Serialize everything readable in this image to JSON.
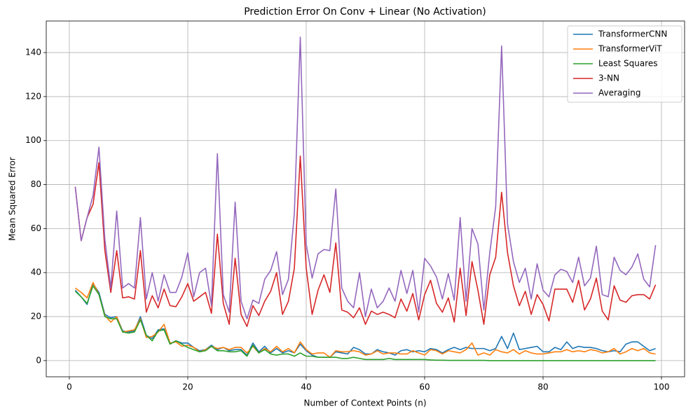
{
  "chart_data": {
    "type": "line",
    "title": "Prediction Error On Conv + Linear (No Activation)",
    "x_label": "Number of Context Points (n)",
    "y_label": "Mean Squared Error",
    "x": [
      1,
      2,
      3,
      4,
      5,
      6,
      7,
      8,
      9,
      10,
      11,
      12,
      13,
      14,
      15,
      16,
      17,
      18,
      19,
      20,
      21,
      22,
      23,
      24,
      25,
      26,
      27,
      28,
      29,
      30,
      31,
      32,
      33,
      34,
      35,
      36,
      37,
      38,
      39,
      40,
      41,
      42,
      43,
      44,
      45,
      46,
      47,
      48,
      49,
      50,
      51,
      52,
      53,
      54,
      55,
      56,
      57,
      58,
      59,
      60,
      61,
      62,
      63,
      64,
      65,
      66,
      67,
      68,
      69,
      70,
      71,
      72,
      73,
      74,
      75,
      76,
      77,
      78,
      79,
      80,
      81,
      82,
      83,
      84,
      85,
      86,
      87,
      88,
      89,
      90,
      91,
      92,
      93,
      94,
      95,
      96,
      97,
      98,
      99
    ],
    "series": [
      {
        "name": "TransformerCNN",
        "color": "#1f77b4",
        "values": [
          32,
          29,
          25.5,
          35,
          31,
          21,
          19.5,
          20,
          13.5,
          13,
          13.5,
          20,
          11.5,
          10,
          14,
          14.5,
          7.5,
          9,
          8,
          8,
          6,
          4.5,
          5,
          7,
          5,
          6,
          4.5,
          5,
          5,
          2.5,
          8,
          4,
          6.5,
          3.5,
          5.5,
          3.5,
          4.5,
          3.5,
          7.5,
          4.5,
          2.5,
          1.5,
          1.5,
          1.5,
          4,
          3.5,
          3,
          6,
          5,
          3,
          3,
          5,
          4,
          3.5,
          2.5,
          4.5,
          5,
          4,
          4.5,
          4,
          5.5,
          5,
          3.5,
          5,
          6,
          5,
          6,
          5.5,
          5.5,
          5.5,
          4.5,
          5.5,
          11,
          5.5,
          12.5,
          5,
          5.5,
          6,
          6.5,
          4,
          4,
          6,
          5,
          8.5,
          5.5,
          6.5,
          6,
          6,
          5.5,
          4.5,
          4,
          4.5,
          4,
          7.5,
          8.5,
          8.5,
          6.5,
          4.5,
          5.5
        ]
      },
      {
        "name": "TransformerViT",
        "color": "#ff7f0e",
        "values": [
          33,
          31,
          28.5,
          35.5,
          30,
          20.5,
          17.5,
          20,
          13,
          13.5,
          14,
          19,
          10.5,
          11,
          13,
          16.5,
          8,
          8.5,
          6.5,
          7,
          6,
          4,
          5,
          6.5,
          5.5,
          6,
          5,
          6,
          6,
          3.5,
          6.5,
          3.5,
          5.5,
          4,
          6.5,
          4,
          5.5,
          3.5,
          8.5,
          5,
          3,
          3.5,
          3.5,
          1.5,
          4.5,
          4,
          4,
          4.5,
          4,
          2.5,
          3,
          4.5,
          3,
          3.5,
          3.5,
          3,
          3,
          4.5,
          3.5,
          2.5,
          5,
          4.5,
          3,
          4.5,
          4,
          3.5,
          5,
          8,
          2.5,
          3.5,
          2.5,
          5,
          4,
          3.5,
          5,
          3,
          4.5,
          3.5,
          3,
          3,
          3.5,
          4,
          4,
          5,
          4,
          4.5,
          4,
          5,
          4.5,
          3.5,
          4,
          5.5,
          3,
          4,
          5.5,
          4.5,
          5.5,
          3.5,
          3
        ]
      },
      {
        "name": "Least Squares",
        "color": "#2ca02c",
        "values": [
          31.5,
          29,
          26,
          34,
          30,
          20,
          19,
          19,
          13,
          12.5,
          13,
          18.5,
          11.5,
          9,
          13.5,
          14,
          7.5,
          9,
          7.5,
          6,
          5,
          4,
          4.5,
          6.5,
          4.5,
          4.5,
          4,
          4,
          4.5,
          2,
          7,
          3.5,
          5,
          3,
          2.5,
          3,
          3,
          2,
          3.5,
          2,
          2,
          1.5,
          1.5,
          1.5,
          1.5,
          1,
          1,
          1.5,
          1,
          0.5,
          0.5,
          0.5,
          0.5,
          1,
          0.5,
          0.5,
          0.5,
          0.5,
          0.5,
          0.5,
          0.3,
          0.2,
          0.2,
          0.1,
          0.1,
          0.1,
          0.1,
          0.1,
          0.1,
          0.1,
          0,
          0,
          0,
          0,
          0,
          0,
          0,
          0,
          0,
          0,
          0,
          0,
          0,
          0,
          0,
          0,
          0,
          0,
          0,
          0,
          0,
          0,
          0,
          0,
          0,
          0,
          0,
          0,
          0
        ]
      },
      {
        "name": "3-NN",
        "color": "#d62728",
        "values": [
          79,
          54.5,
          65,
          71,
          90,
          50,
          31,
          50,
          28.5,
          29,
          28,
          50,
          22,
          29.5,
          24,
          32.5,
          25,
          24.5,
          29,
          35,
          27,
          29,
          31,
          21.5,
          57.5,
          26,
          16.5,
          46.5,
          21,
          15.5,
          25,
          20.5,
          27,
          31.5,
          40,
          21,
          27,
          42,
          93,
          42,
          21,
          32,
          39,
          31,
          53.5,
          23,
          22,
          19.5,
          24,
          16.5,
          22.5,
          21,
          22,
          21,
          19.5,
          28,
          22.5,
          30.5,
          18.5,
          30,
          36.5,
          26,
          22,
          28.5,
          17.5,
          42,
          20.5,
          45,
          32,
          16.5,
          39,
          47,
          76.5,
          49,
          34,
          25,
          31.5,
          21,
          30,
          25.5,
          18,
          32.5,
          32.5,
          32.5,
          26.5,
          36.5,
          23,
          28,
          37.5,
          22.5,
          18.5,
          34,
          27.5,
          26.5,
          29.5,
          30,
          30,
          28,
          34.5
        ]
      },
      {
        "name": "Averaging",
        "color": "#9467bd",
        "values": [
          79,
          54.5,
          65,
          75,
          97,
          55,
          33,
          68,
          33,
          35,
          33,
          65,
          28,
          40,
          27,
          39,
          31,
          31,
          38,
          49,
          29,
          40,
          42,
          25,
          94,
          30,
          22,
          72,
          27,
          19,
          27.5,
          26,
          37,
          41,
          49.5,
          30,
          37,
          67,
          147,
          53,
          37.5,
          48.5,
          50.5,
          50,
          78,
          33,
          27,
          24,
          40,
          20,
          32.5,
          24,
          27,
          33,
          27,
          41,
          30.5,
          41,
          22,
          46.5,
          43,
          38,
          28,
          39.5,
          27.5,
          65,
          27,
          60,
          53,
          23,
          49,
          70,
          143,
          62,
          45,
          35.5,
          42,
          28,
          44,
          32,
          29,
          39,
          41.5,
          40.5,
          35.5,
          47,
          34,
          37.5,
          52,
          30,
          29,
          47,
          41,
          39,
          42.5,
          48.5,
          37,
          33.5,
          52.5
        ]
      }
    ],
    "xlim": [
      -3.9,
      103.9
    ],
    "xticks": [
      0,
      20,
      40,
      60,
      80,
      100
    ],
    "ylim": [
      -7.35,
      154.35
    ],
    "yticks": [
      0,
      20,
      40,
      60,
      80,
      100,
      120,
      140
    ],
    "grid": true,
    "legend": "upper right"
  }
}
